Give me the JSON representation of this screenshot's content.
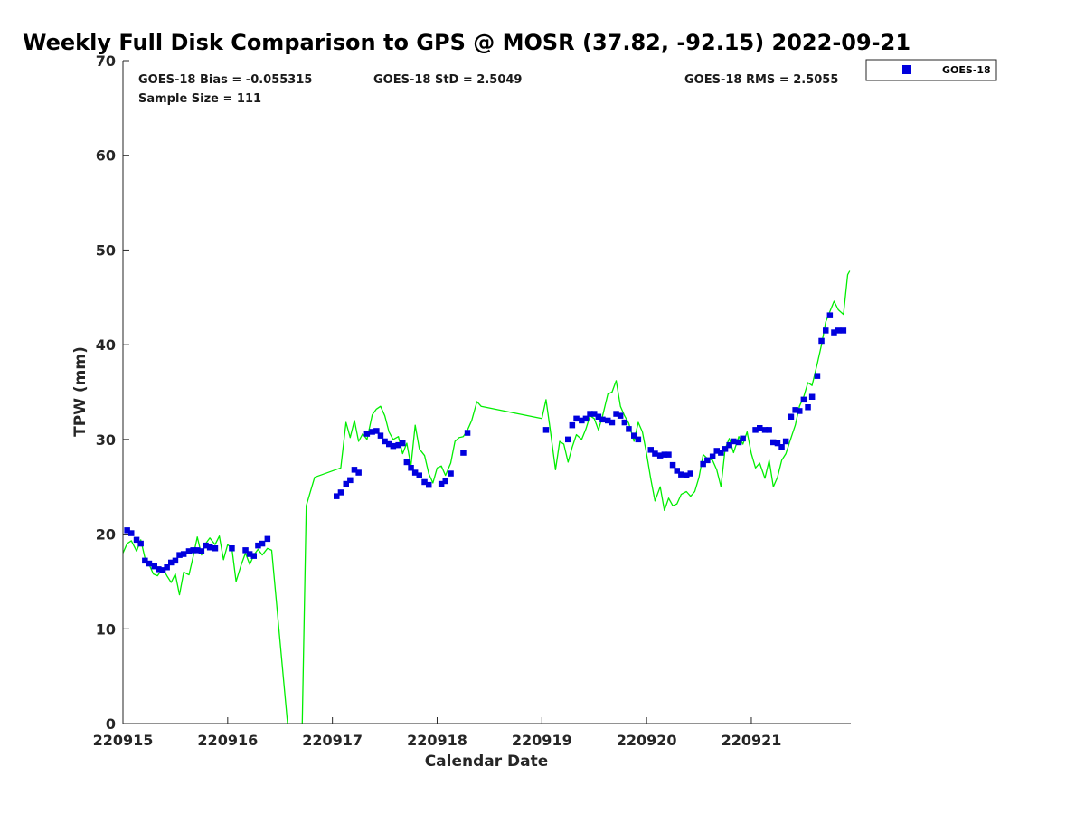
{
  "chart_data": {
    "type": "scatter",
    "title": "Weekly Full Disk Comparison to GPS @ MOSR (37.82, -92.15) 2022-09-21",
    "xlabel": "Calendar Date",
    "ylabel": "TPW (mm)",
    "xlim": [
      0,
      6.95
    ],
    "ylim": [
      0,
      70
    ],
    "y_ticks": [
      0,
      10,
      20,
      30,
      40,
      50,
      60,
      70
    ],
    "x_ticks": [
      {
        "value": 0,
        "label": "220915"
      },
      {
        "value": 1,
        "label": "220916"
      },
      {
        "value": 2,
        "label": "220917"
      },
      {
        "value": 3,
        "label": "220918"
      },
      {
        "value": 4,
        "label": "220919"
      },
      {
        "value": 5,
        "label": "220920"
      },
      {
        "value": 6,
        "label": "220921"
      }
    ],
    "stats": {
      "bias": "GOES-18 Bias = -0.055315",
      "std": "GOES-18 StD = 2.5049",
      "rms": "GOES-18 RMS = 2.5055",
      "sample_size": "Sample Size = 111"
    },
    "legend": {
      "label": "GOES-18",
      "position": "top-right"
    },
    "colors": {
      "goes": "#0000dd",
      "gps": "#00ee00",
      "axis": "#262626"
    },
    "series": [
      {
        "name": "GOES-18",
        "kind": "markers",
        "x": [
          0.04,
          0.08,
          0.13,
          0.17,
          0.21,
          0.25,
          0.3,
          0.34,
          0.38,
          0.42,
          0.46,
          0.5,
          0.54,
          0.58,
          0.63,
          0.67,
          0.71,
          0.75,
          0.79,
          0.83,
          0.88,
          1.04,
          1.17,
          1.21,
          1.25,
          1.29,
          1.33,
          1.38,
          2.04,
          2.08,
          2.13,
          2.17,
          2.21,
          2.25,
          2.33,
          2.38,
          2.42,
          2.46,
          2.5,
          2.54,
          2.58,
          2.63,
          2.67,
          2.71,
          2.75,
          2.79,
          2.83,
          2.88,
          2.92,
          3.04,
          3.08,
          3.13,
          3.25,
          3.29,
          4.04,
          4.25,
          4.29,
          4.33,
          4.38,
          4.42,
          4.46,
          4.5,
          4.54,
          4.58,
          4.63,
          4.67,
          4.71,
          4.75,
          4.79,
          4.83,
          4.88,
          4.92,
          5.04,
          5.08,
          5.13,
          5.17,
          5.21,
          5.25,
          5.29,
          5.33,
          5.38,
          5.42,
          5.54,
          5.58,
          5.63,
          5.67,
          5.71,
          5.75,
          5.79,
          5.83,
          5.88,
          5.92,
          6.04,
          6.08,
          6.13,
          6.17,
          6.21,
          6.25,
          6.29,
          6.33,
          6.38,
          6.42,
          6.46,
          6.5,
          6.54,
          6.58,
          6.63,
          6.67,
          6.71,
          6.75,
          6.79,
          6.83,
          6.88
        ],
        "y": [
          20.4,
          20.1,
          19.4,
          19.0,
          17.2,
          16.9,
          16.6,
          16.3,
          16.2,
          16.5,
          17.0,
          17.2,
          17.8,
          17.9,
          18.2,
          18.3,
          18.3,
          18.2,
          18.8,
          18.6,
          18.5,
          18.5,
          18.3,
          17.9,
          17.7,
          18.8,
          19.0,
          19.5,
          24.0,
          24.4,
          25.3,
          25.7,
          26.8,
          26.5,
          30.6,
          30.8,
          30.9,
          30.4,
          29.8,
          29.5,
          29.3,
          29.4,
          29.6,
          27.6,
          27.0,
          26.5,
          26.2,
          25.5,
          25.2,
          25.3,
          25.6,
          26.4,
          28.6,
          30.7,
          31.0,
          30.0,
          31.5,
          32.2,
          32.0,
          32.2,
          32.7,
          32.7,
          32.4,
          32.1,
          32.0,
          31.8,
          32.7,
          32.5,
          31.8,
          31.1,
          30.4,
          30.0,
          28.9,
          28.5,
          28.3,
          28.4,
          28.4,
          27.3,
          26.7,
          26.3,
          26.2,
          26.4,
          27.4,
          27.8,
          28.2,
          28.8,
          28.6,
          29.0,
          29.4,
          29.8,
          29.7,
          30.1,
          31.0,
          31.2,
          31.0,
          31.0,
          29.7,
          29.6,
          29.2,
          29.8,
          32.4,
          33.1,
          33.0,
          34.2,
          33.4,
          34.5,
          36.7,
          40.4,
          41.5,
          43.1,
          41.3,
          41.5,
          41.5
        ]
      },
      {
        "name": "GPS",
        "kind": "line",
        "x": [
          0.0,
          0.04,
          0.08,
          0.13,
          0.17,
          0.21,
          0.25,
          0.29,
          0.33,
          0.38,
          0.42,
          0.46,
          0.5,
          0.54,
          0.58,
          0.63,
          0.67,
          0.71,
          0.75,
          0.79,
          0.83,
          0.88,
          0.92,
          0.96,
          1.0,
          1.04,
          1.08,
          1.13,
          1.17,
          1.21,
          1.25,
          1.29,
          1.33,
          1.38,
          1.42,
          1.58,
          1.63,
          1.71,
          1.75,
          1.83,
          2.08,
          2.13,
          2.17,
          2.21,
          2.25,
          2.29,
          2.33,
          2.38,
          2.42,
          2.46,
          2.5,
          2.54,
          2.58,
          2.63,
          2.67,
          2.71,
          2.75,
          2.79,
          2.83,
          2.88,
          2.92,
          2.96,
          3.0,
          3.04,
          3.08,
          3.13,
          3.17,
          3.21,
          3.25,
          3.29,
          3.33,
          3.38,
          3.42,
          4.0,
          4.04,
          4.08,
          4.13,
          4.17,
          4.21,
          4.25,
          4.29,
          4.33,
          4.38,
          4.42,
          4.46,
          4.5,
          4.54,
          4.58,
          4.63,
          4.67,
          4.71,
          4.75,
          4.79,
          4.83,
          4.88,
          4.92,
          4.96,
          5.0,
          5.04,
          5.08,
          5.13,
          5.17,
          5.21,
          5.25,
          5.29,
          5.33,
          5.38,
          5.42,
          5.46,
          5.5,
          5.54,
          5.58,
          5.63,
          5.67,
          5.71,
          5.75,
          5.79,
          5.83,
          5.88,
          5.92,
          5.96,
          6.0,
          6.04,
          6.08,
          6.13,
          6.17,
          6.21,
          6.25,
          6.29,
          6.33,
          6.38,
          6.42,
          6.46,
          6.5,
          6.54,
          6.58,
          6.63,
          6.67,
          6.71,
          6.75,
          6.79,
          6.83,
          6.88,
          6.92,
          6.94
        ],
        "y": [
          18.0,
          19.0,
          19.3,
          18.2,
          19.4,
          17.5,
          16.8,
          15.8,
          15.6,
          16.4,
          15.6,
          14.9,
          15.8,
          13.6,
          16.0,
          15.7,
          17.6,
          19.7,
          17.8,
          19.0,
          19.6,
          18.9,
          19.8,
          17.3,
          18.9,
          18.5,
          15.0,
          16.8,
          18.0,
          16.8,
          17.8,
          18.4,
          17.8,
          18.5,
          18.3,
          -1.0,
          -1.0,
          -1.0,
          23.0,
          26.0,
          27.0,
          31.8,
          30.2,
          32.0,
          29.8,
          30.6,
          30.0,
          32.6,
          33.2,
          33.5,
          32.5,
          30.8,
          30.0,
          30.3,
          28.5,
          29.6,
          27.2,
          31.5,
          29.0,
          28.3,
          26.4,
          25.4,
          27.0,
          27.2,
          26.2,
          27.5,
          29.8,
          30.2,
          30.3,
          31.0,
          32.0,
          34.0,
          33.5,
          32.2,
          34.2,
          31.0,
          26.8,
          29.8,
          29.5,
          27.6,
          29.2,
          30.5,
          30.0,
          31.1,
          32.5,
          32.2,
          31.0,
          32.5,
          34.8,
          35.0,
          36.2,
          33.5,
          32.5,
          31.7,
          29.8,
          31.8,
          30.8,
          28.5,
          25.8,
          23.5,
          25.0,
          22.5,
          23.8,
          23.0,
          23.2,
          24.2,
          24.5,
          24.0,
          24.5,
          26.0,
          28.4,
          28.0,
          27.8,
          26.8,
          25.0,
          29.0,
          30.1,
          28.6,
          30.3,
          29.5,
          30.8,
          28.5,
          27.0,
          27.5,
          25.9,
          27.8,
          25.0,
          26.0,
          27.8,
          28.5,
          30.2,
          31.5,
          33.5,
          34.5,
          36.0,
          35.7,
          38.0,
          40.0,
          42.4,
          43.5,
          44.6,
          43.7,
          43.2,
          47.4,
          47.8
        ]
      }
    ]
  }
}
